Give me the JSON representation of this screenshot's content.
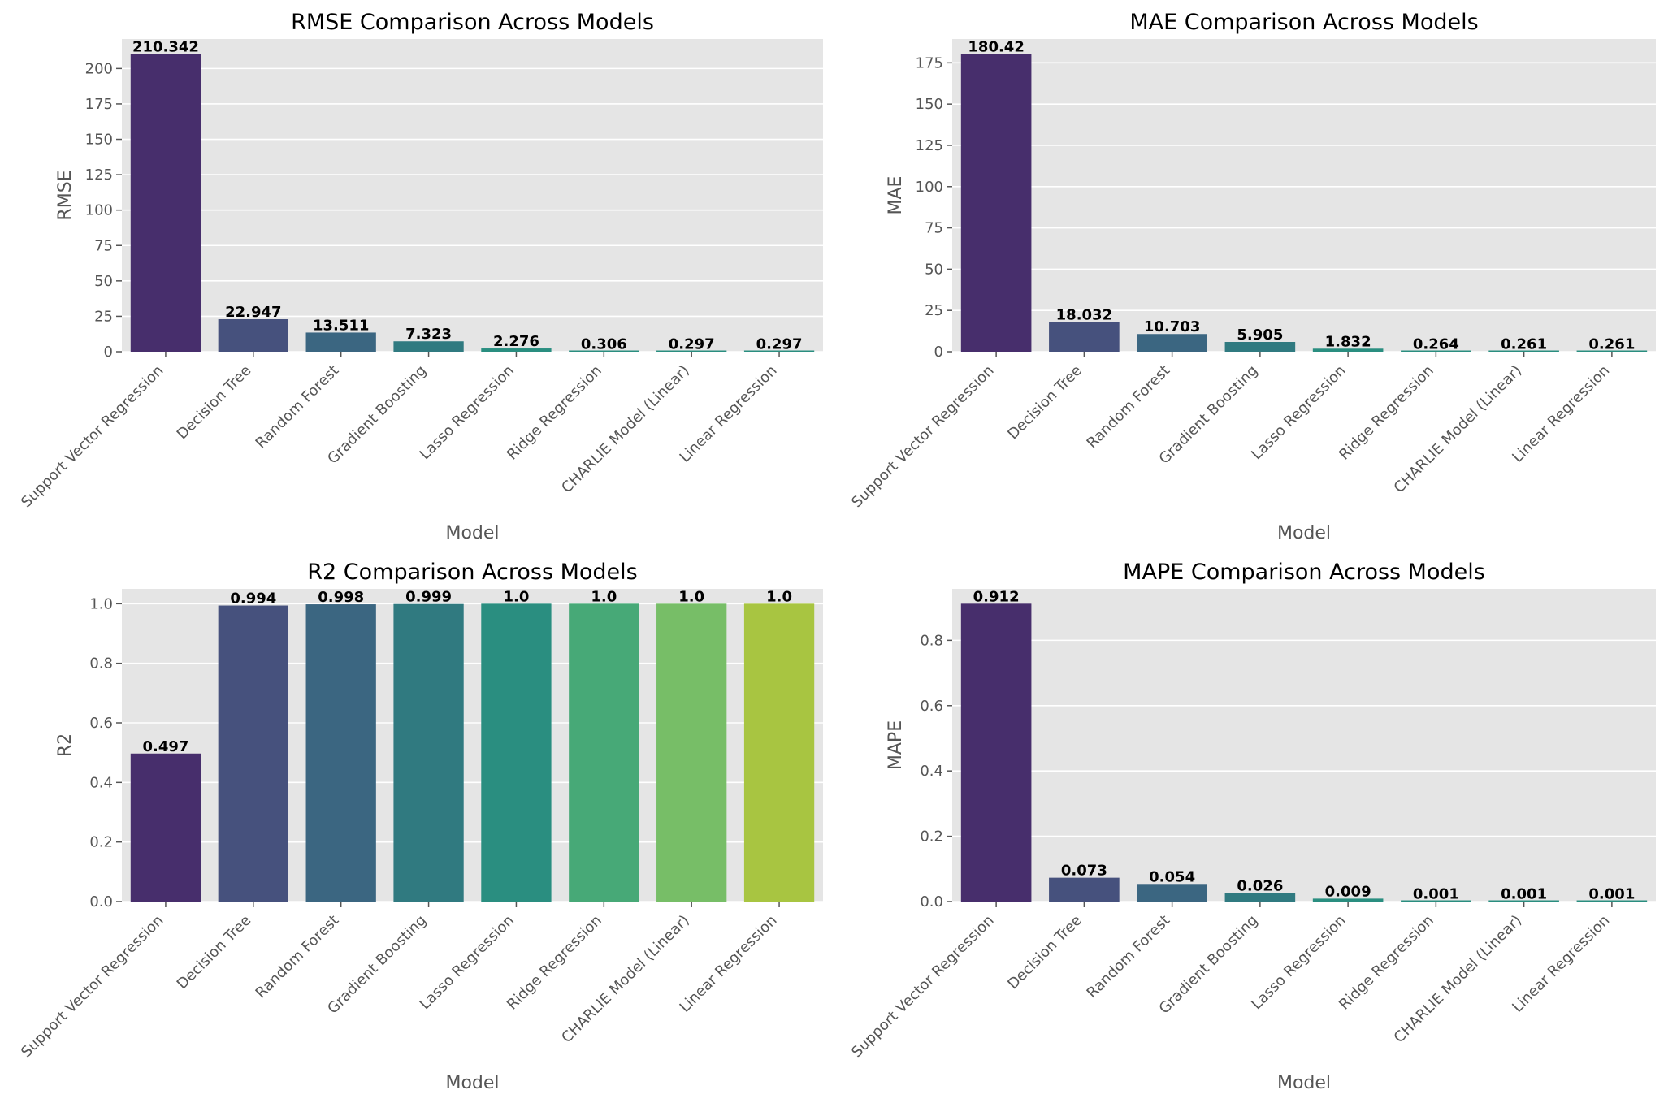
{
  "chart_data": [
    {
      "type": "bar",
      "title": "RMSE Comparison Across Models",
      "xlabel": "Model",
      "ylabel": "RMSE",
      "categories": [
        "Support Vector Regression",
        "Decision Tree",
        "Random Forest",
        "Gradient Boosting",
        "Lasso Regression",
        "Ridge Regression",
        "CHARLIE Model (Linear)",
        "Linear Regression"
      ],
      "values": [
        210.342,
        22.947,
        13.511,
        7.323,
        2.276,
        0.306,
        0.297,
        0.297
      ],
      "value_labels": [
        "210.342",
        "22.947",
        "13.511",
        "7.323",
        "2.276",
        "0.306",
        "0.297",
        "0.297"
      ],
      "yticks": [
        0,
        25,
        50,
        75,
        100,
        125,
        150,
        175,
        200
      ],
      "ytick_labels": [
        "0",
        "25",
        "50",
        "75",
        "100",
        "125",
        "150",
        "175",
        "200"
      ],
      "ylim": [
        0,
        220.86
      ],
      "grid": true,
      "colors": [
        "#472e6c",
        "#46517d",
        "#3b6681",
        "#307a80",
        "#2a8e80",
        "#2a8e80",
        "#2a8e80",
        "#2a8e80"
      ]
    },
    {
      "type": "bar",
      "title": "MAE Comparison Across Models",
      "xlabel": "Model",
      "ylabel": "MAE",
      "categories": [
        "Support Vector Regression",
        "Decision Tree",
        "Random Forest",
        "Gradient Boosting",
        "Lasso Regression",
        "Ridge Regression",
        "CHARLIE Model (Linear)",
        "Linear Regression"
      ],
      "values": [
        180.42,
        18.032,
        10.703,
        5.905,
        1.832,
        0.264,
        0.261,
        0.261
      ],
      "value_labels": [
        "180.42",
        "18.032",
        "10.703",
        "5.905",
        "1.832",
        "0.264",
        "0.261",
        "0.261"
      ],
      "yticks": [
        0,
        25,
        50,
        75,
        100,
        125,
        150,
        175
      ],
      "ytick_labels": [
        "0",
        "25",
        "50",
        "75",
        "100",
        "125",
        "150",
        "175"
      ],
      "ylim": [
        0,
        189.44
      ],
      "grid": true,
      "colors": [
        "#472e6c",
        "#46517d",
        "#3b6681",
        "#307a80",
        "#2a8e80",
        "#2a8e80",
        "#2a8e80",
        "#2a8e80"
      ]
    },
    {
      "type": "bar",
      "title": "R2 Comparison Across Models",
      "xlabel": "Model",
      "ylabel": "R2",
      "categories": [
        "Support Vector Regression",
        "Decision Tree",
        "Random Forest",
        "Gradient Boosting",
        "Lasso Regression",
        "Ridge Regression",
        "CHARLIE Model (Linear)",
        "Linear Regression"
      ],
      "values": [
        0.497,
        0.994,
        0.998,
        0.999,
        1.0,
        1.0,
        1.0,
        1.0
      ],
      "value_labels": [
        "0.497",
        "0.994",
        "0.998",
        "0.999",
        "1.0",
        "1.0",
        "1.0",
        "1.0"
      ],
      "yticks": [
        0,
        0.2,
        0.4,
        0.6,
        0.8,
        1.0
      ],
      "ytick_labels": [
        "0.0",
        "0.2",
        "0.4",
        "0.6",
        "0.8",
        "1.0"
      ],
      "ylim": [
        0,
        1.05
      ],
      "grid": true,
      "colors": [
        "#472e6c",
        "#46517d",
        "#3b6681",
        "#307a80",
        "#2a8e80",
        "#47a977",
        "#77be67",
        "#a8c541"
      ]
    },
    {
      "type": "bar",
      "title": "MAPE Comparison Across Models",
      "xlabel": "Model",
      "ylabel": "MAPE",
      "categories": [
        "Support Vector Regression",
        "Decision Tree",
        "Random Forest",
        "Gradient Boosting",
        "Lasso Regression",
        "Ridge Regression",
        "CHARLIE Model (Linear)",
        "Linear Regression"
      ],
      "values": [
        0.912,
        0.073,
        0.054,
        0.026,
        0.009,
        0.001,
        0.001,
        0.001
      ],
      "value_labels": [
        "0.912",
        "0.073",
        "0.054",
        "0.026",
        "0.009",
        "0.001",
        "0.001",
        "0.001"
      ],
      "yticks": [
        0,
        0.2,
        0.4,
        0.6,
        0.8
      ],
      "ytick_labels": [
        "0.0",
        "0.2",
        "0.4",
        "0.6",
        "0.8"
      ],
      "ylim": [
        0,
        0.9576
      ],
      "grid": true,
      "colors": [
        "#472e6c",
        "#46517d",
        "#3b6681",
        "#307a80",
        "#2a8e80",
        "#2a8e80",
        "#2a8e80",
        "#2a8e80"
      ]
    }
  ],
  "style": {
    "panel_background": "#e5e5e5",
    "grid_color": "#ffffff",
    "tick_color": "#555555"
  }
}
